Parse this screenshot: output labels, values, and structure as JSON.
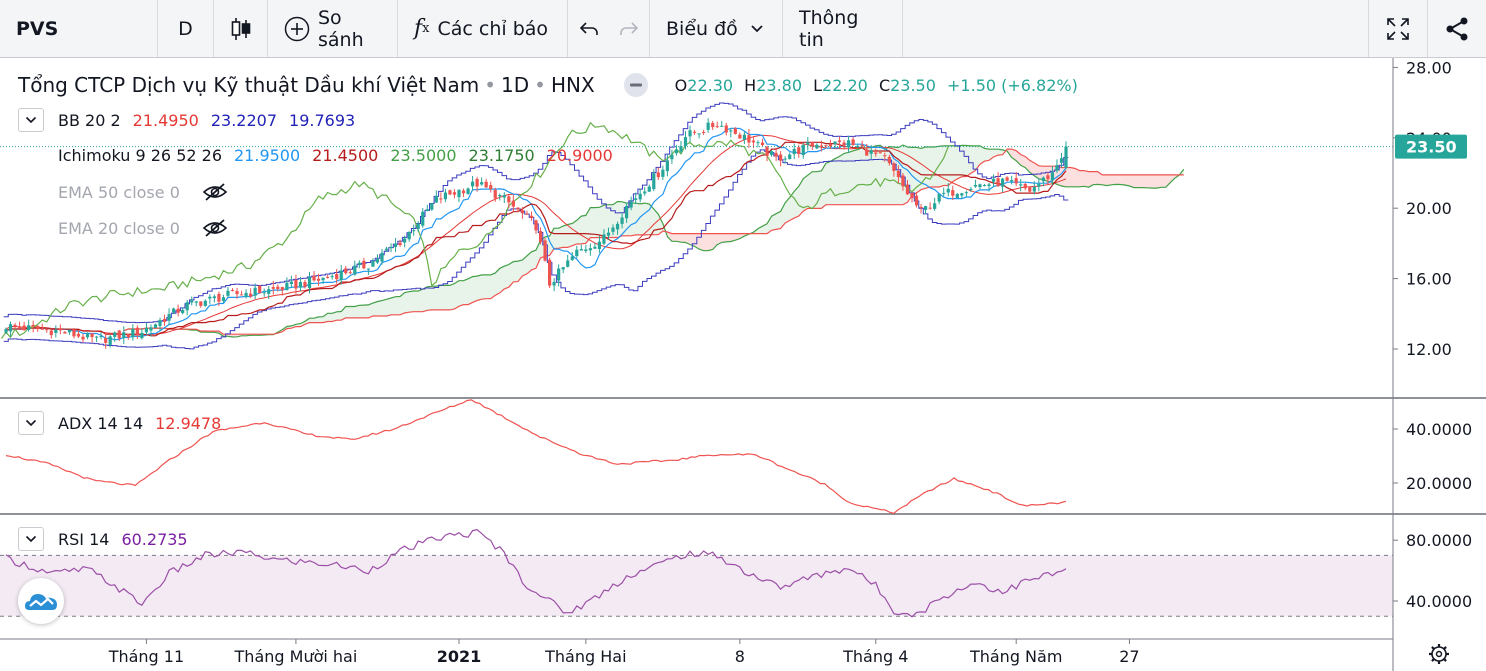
{
  "toolbar": {
    "symbol": "PVS",
    "interval": "D",
    "compare_label": "So sánh",
    "indicators_label": "Các chỉ báo",
    "chart_label": "Biểu đồ",
    "info_label": "Thông tin",
    "icons": [
      "candles-icon",
      "plus-circle-icon",
      "fx-icon",
      "undo-icon",
      "redo-icon",
      "chevron-down-icon",
      "fullscreen-icon",
      "share-icon"
    ]
  },
  "header": {
    "company": "Tổng CTCP Dịch vụ Kỹ thuật Dầu khí Việt Nam",
    "interval": "1D",
    "exchange": "HNX",
    "ohlc": {
      "o_label": "O",
      "o": "22.30",
      "h_label": "H",
      "h": "23.80",
      "l_label": "L",
      "l": "22.20",
      "c_label": "C",
      "c": "23.50",
      "change": "+1.50 (+6.82%)"
    }
  },
  "legends": {
    "bb": {
      "name": "BB 20 2",
      "v1": "21.4950",
      "v2": "23.2207",
      "v3": "19.7693"
    },
    "ichimoku": {
      "name": "Ichimoku 9 26 52 26",
      "v1": "21.9500",
      "v2": "21.4500",
      "v3": "23.5000",
      "v4": "23.1750",
      "v5": "20.9000"
    },
    "ema50": {
      "name": "EMA 50 close 0"
    },
    "ema20": {
      "name": "EMA 20 close 0"
    },
    "adx": {
      "name": "ADX 14 14",
      "value": "12.9478"
    },
    "rsi": {
      "name": "RSI 14",
      "value": "60.2735"
    }
  },
  "colors": {
    "up": "#26a69a",
    "down": "#ef5350",
    "bb": "#3b3bbf",
    "tenkan": "#2196f3",
    "kijun": "#e53935",
    "chikou": "#66b04a",
    "spanA": "#43a047",
    "spanB": "#ef5350",
    "adx": "#ef5350",
    "rsi": "#9c4fa6",
    "price_label": "#26a69a"
  },
  "chart_data": [
    {
      "type": "candlestick",
      "title": "Tổng CTCP Dịch vụ Kỹ thuật Dầu khí Việt Nam · 1D · HNX",
      "x_ticks": [
        "Tháng 11",
        "Tháng Mười hai",
        "2021",
        "Tháng Hai",
        "8",
        "Tháng 4",
        "Tháng Năm",
        "27"
      ],
      "y_ticks": [
        "12.00",
        "16.00",
        "20.00",
        "24.00",
        "28.00"
      ],
      "ylim": [
        10.0,
        28.0
      ],
      "last_price_label": "23.50",
      "anchors_close": [
        [
          0,
          13.3
        ],
        [
          12,
          13.0
        ],
        [
          20,
          12.5
        ],
        [
          30,
          13.0
        ],
        [
          40,
          14.5
        ],
        [
          50,
          15.1
        ],
        [
          60,
          15.4
        ],
        [
          70,
          16.0
        ],
        [
          80,
          16.8
        ],
        [
          88,
          18.3
        ],
        [
          95,
          20.5
        ],
        [
          104,
          21.4
        ],
        [
          110,
          20.5
        ],
        [
          117,
          19.0
        ],
        [
          120,
          15.7
        ],
        [
          126,
          17.5
        ],
        [
          132,
          18.3
        ],
        [
          137,
          20.1
        ],
        [
          144,
          22.0
        ],
        [
          150,
          24.1
        ],
        [
          157,
          24.8
        ],
        [
          164,
          23.9
        ],
        [
          170,
          22.8
        ],
        [
          178,
          23.6
        ],
        [
          186,
          23.7
        ],
        [
          194,
          22.8
        ],
        [
          198,
          21.2
        ],
        [
          202,
          19.8
        ],
        [
          207,
          20.8
        ],
        [
          214,
          21.3
        ],
        [
          220,
          21.5
        ],
        [
          226,
          21.0
        ],
        [
          231,
          22.0
        ],
        [
          234,
          23.5
        ]
      ],
      "series": [
        {
          "name": "BB 20 2",
          "last": [
            21.495,
            23.2207,
            19.7693
          ]
        },
        {
          "name": "Ichimoku 9 26 52 26",
          "last": [
            21.95,
            21.45,
            23.5,
            23.175,
            20.9
          ]
        }
      ]
    },
    {
      "type": "line",
      "title": "ADX 14 14",
      "y_ticks": [
        "20.0000",
        "40.0000"
      ],
      "ylim": [
        5,
        60
      ],
      "anchors": [
        [
          0,
          30.5
        ],
        [
          10,
          27
        ],
        [
          20,
          21
        ],
        [
          30,
          19
        ],
        [
          38,
          28.5
        ],
        [
          48,
          39
        ],
        [
          60,
          42.5
        ],
        [
          70,
          38
        ],
        [
          80,
          36
        ],
        [
          90,
          40
        ],
        [
          98,
          45
        ],
        [
          108,
          51
        ],
        [
          116,
          44
        ],
        [
          124,
          37
        ],
        [
          134,
          30.5
        ],
        [
          142,
          27
        ],
        [
          155,
          28.5
        ],
        [
          164,
          30.5
        ],
        [
          174,
          30.5
        ],
        [
          181,
          25.5
        ],
        [
          190,
          19.5
        ],
        [
          196,
          12.5
        ],
        [
          206,
          9
        ],
        [
          214,
          17
        ],
        [
          220,
          21.5
        ],
        [
          228,
          17.5
        ],
        [
          236,
          11.5
        ],
        [
          246,
          12.9
        ]
      ]
    },
    {
      "type": "line",
      "title": "RSI 14",
      "y_ticks": [
        "40.0000",
        "80.0000"
      ],
      "ylim": [
        26,
        94
      ],
      "bands": [
        30,
        70
      ],
      "anchors": [
        [
          0,
          68
        ],
        [
          10,
          58
        ],
        [
          18,
          61
        ],
        [
          24,
          50
        ],
        [
          30,
          38
        ],
        [
          36,
          58
        ],
        [
          44,
          70
        ],
        [
          52,
          72
        ],
        [
          60,
          67
        ],
        [
          72,
          64
        ],
        [
          80,
          60
        ],
        [
          88,
          74
        ],
        [
          96,
          82
        ],
        [
          104,
          85
        ],
        [
          110,
          72
        ],
        [
          114,
          53
        ],
        [
          118,
          44
        ],
        [
          124,
          32
        ],
        [
          130,
          42
        ],
        [
          137,
          56
        ],
        [
          144,
          64
        ],
        [
          150,
          71
        ],
        [
          157,
          70
        ],
        [
          164,
          58
        ],
        [
          171,
          49
        ],
        [
          178,
          56
        ],
        [
          186,
          62
        ],
        [
          192,
          50
        ],
        [
          196,
          34
        ],
        [
          201,
          31
        ],
        [
          207,
          43
        ],
        [
          214,
          52
        ],
        [
          220,
          46
        ],
        [
          226,
          54
        ],
        [
          234,
          60
        ]
      ]
    }
  ]
}
